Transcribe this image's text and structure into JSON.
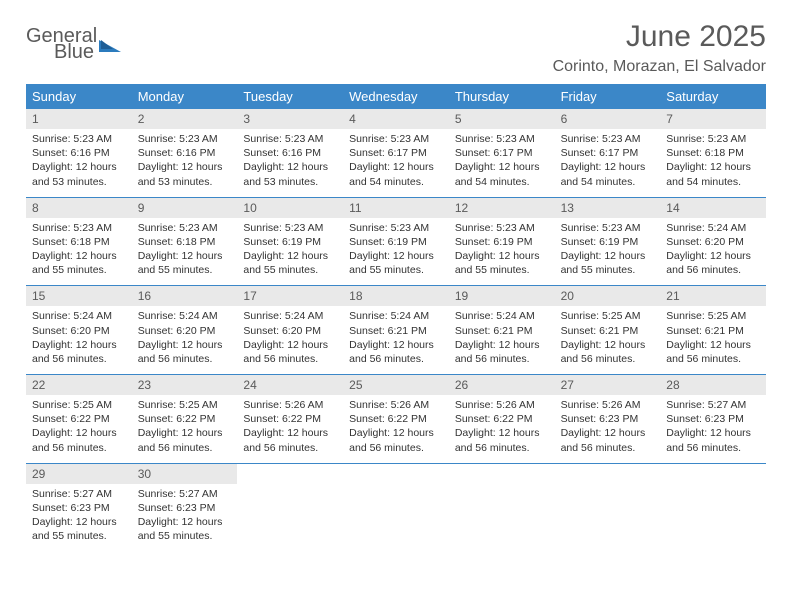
{
  "logo": {
    "line1": "General",
    "line2": "Blue"
  },
  "title": "June 2025",
  "location": "Corinto, Morazan, El Salvador",
  "colors": {
    "header_bg": "#3b87c8",
    "header_text": "#ffffff",
    "daynum_bg": "#e9e9e9",
    "text_gray": "#5a5a5a",
    "info_text": "#333333",
    "rule": "#3b87c8"
  },
  "day_names": [
    "Sunday",
    "Monday",
    "Tuesday",
    "Wednesday",
    "Thursday",
    "Friday",
    "Saturday"
  ],
  "weeks": [
    [
      {
        "n": "1",
        "sr": "Sunrise: 5:23 AM",
        "ss": "Sunset: 6:16 PM",
        "dl": "Daylight: 12 hours and 53 minutes."
      },
      {
        "n": "2",
        "sr": "Sunrise: 5:23 AM",
        "ss": "Sunset: 6:16 PM",
        "dl": "Daylight: 12 hours and 53 minutes."
      },
      {
        "n": "3",
        "sr": "Sunrise: 5:23 AM",
        "ss": "Sunset: 6:16 PM",
        "dl": "Daylight: 12 hours and 53 minutes."
      },
      {
        "n": "4",
        "sr": "Sunrise: 5:23 AM",
        "ss": "Sunset: 6:17 PM",
        "dl": "Daylight: 12 hours and 54 minutes."
      },
      {
        "n": "5",
        "sr": "Sunrise: 5:23 AM",
        "ss": "Sunset: 6:17 PM",
        "dl": "Daylight: 12 hours and 54 minutes."
      },
      {
        "n": "6",
        "sr": "Sunrise: 5:23 AM",
        "ss": "Sunset: 6:17 PM",
        "dl": "Daylight: 12 hours and 54 minutes."
      },
      {
        "n": "7",
        "sr": "Sunrise: 5:23 AM",
        "ss": "Sunset: 6:18 PM",
        "dl": "Daylight: 12 hours and 54 minutes."
      }
    ],
    [
      {
        "n": "8",
        "sr": "Sunrise: 5:23 AM",
        "ss": "Sunset: 6:18 PM",
        "dl": "Daylight: 12 hours and 55 minutes."
      },
      {
        "n": "9",
        "sr": "Sunrise: 5:23 AM",
        "ss": "Sunset: 6:18 PM",
        "dl": "Daylight: 12 hours and 55 minutes."
      },
      {
        "n": "10",
        "sr": "Sunrise: 5:23 AM",
        "ss": "Sunset: 6:19 PM",
        "dl": "Daylight: 12 hours and 55 minutes."
      },
      {
        "n": "11",
        "sr": "Sunrise: 5:23 AM",
        "ss": "Sunset: 6:19 PM",
        "dl": "Daylight: 12 hours and 55 minutes."
      },
      {
        "n": "12",
        "sr": "Sunrise: 5:23 AM",
        "ss": "Sunset: 6:19 PM",
        "dl": "Daylight: 12 hours and 55 minutes."
      },
      {
        "n": "13",
        "sr": "Sunrise: 5:23 AM",
        "ss": "Sunset: 6:19 PM",
        "dl": "Daylight: 12 hours and 55 minutes."
      },
      {
        "n": "14",
        "sr": "Sunrise: 5:24 AM",
        "ss": "Sunset: 6:20 PM",
        "dl": "Daylight: 12 hours and 56 minutes."
      }
    ],
    [
      {
        "n": "15",
        "sr": "Sunrise: 5:24 AM",
        "ss": "Sunset: 6:20 PM",
        "dl": "Daylight: 12 hours and 56 minutes."
      },
      {
        "n": "16",
        "sr": "Sunrise: 5:24 AM",
        "ss": "Sunset: 6:20 PM",
        "dl": "Daylight: 12 hours and 56 minutes."
      },
      {
        "n": "17",
        "sr": "Sunrise: 5:24 AM",
        "ss": "Sunset: 6:20 PM",
        "dl": "Daylight: 12 hours and 56 minutes."
      },
      {
        "n": "18",
        "sr": "Sunrise: 5:24 AM",
        "ss": "Sunset: 6:21 PM",
        "dl": "Daylight: 12 hours and 56 minutes."
      },
      {
        "n": "19",
        "sr": "Sunrise: 5:24 AM",
        "ss": "Sunset: 6:21 PM",
        "dl": "Daylight: 12 hours and 56 minutes."
      },
      {
        "n": "20",
        "sr": "Sunrise: 5:25 AM",
        "ss": "Sunset: 6:21 PM",
        "dl": "Daylight: 12 hours and 56 minutes."
      },
      {
        "n": "21",
        "sr": "Sunrise: 5:25 AM",
        "ss": "Sunset: 6:21 PM",
        "dl": "Daylight: 12 hours and 56 minutes."
      }
    ],
    [
      {
        "n": "22",
        "sr": "Sunrise: 5:25 AM",
        "ss": "Sunset: 6:22 PM",
        "dl": "Daylight: 12 hours and 56 minutes."
      },
      {
        "n": "23",
        "sr": "Sunrise: 5:25 AM",
        "ss": "Sunset: 6:22 PM",
        "dl": "Daylight: 12 hours and 56 minutes."
      },
      {
        "n": "24",
        "sr": "Sunrise: 5:26 AM",
        "ss": "Sunset: 6:22 PM",
        "dl": "Daylight: 12 hours and 56 minutes."
      },
      {
        "n": "25",
        "sr": "Sunrise: 5:26 AM",
        "ss": "Sunset: 6:22 PM",
        "dl": "Daylight: 12 hours and 56 minutes."
      },
      {
        "n": "26",
        "sr": "Sunrise: 5:26 AM",
        "ss": "Sunset: 6:22 PM",
        "dl": "Daylight: 12 hours and 56 minutes."
      },
      {
        "n": "27",
        "sr": "Sunrise: 5:26 AM",
        "ss": "Sunset: 6:23 PM",
        "dl": "Daylight: 12 hours and 56 minutes."
      },
      {
        "n": "28",
        "sr": "Sunrise: 5:27 AM",
        "ss": "Sunset: 6:23 PM",
        "dl": "Daylight: 12 hours and 56 minutes."
      }
    ],
    [
      {
        "n": "29",
        "sr": "Sunrise: 5:27 AM",
        "ss": "Sunset: 6:23 PM",
        "dl": "Daylight: 12 hours and 55 minutes."
      },
      {
        "n": "30",
        "sr": "Sunrise: 5:27 AM",
        "ss": "Sunset: 6:23 PM",
        "dl": "Daylight: 12 hours and 55 minutes."
      },
      {
        "empty": true
      },
      {
        "empty": true
      },
      {
        "empty": true
      },
      {
        "empty": true
      },
      {
        "empty": true
      }
    ]
  ]
}
